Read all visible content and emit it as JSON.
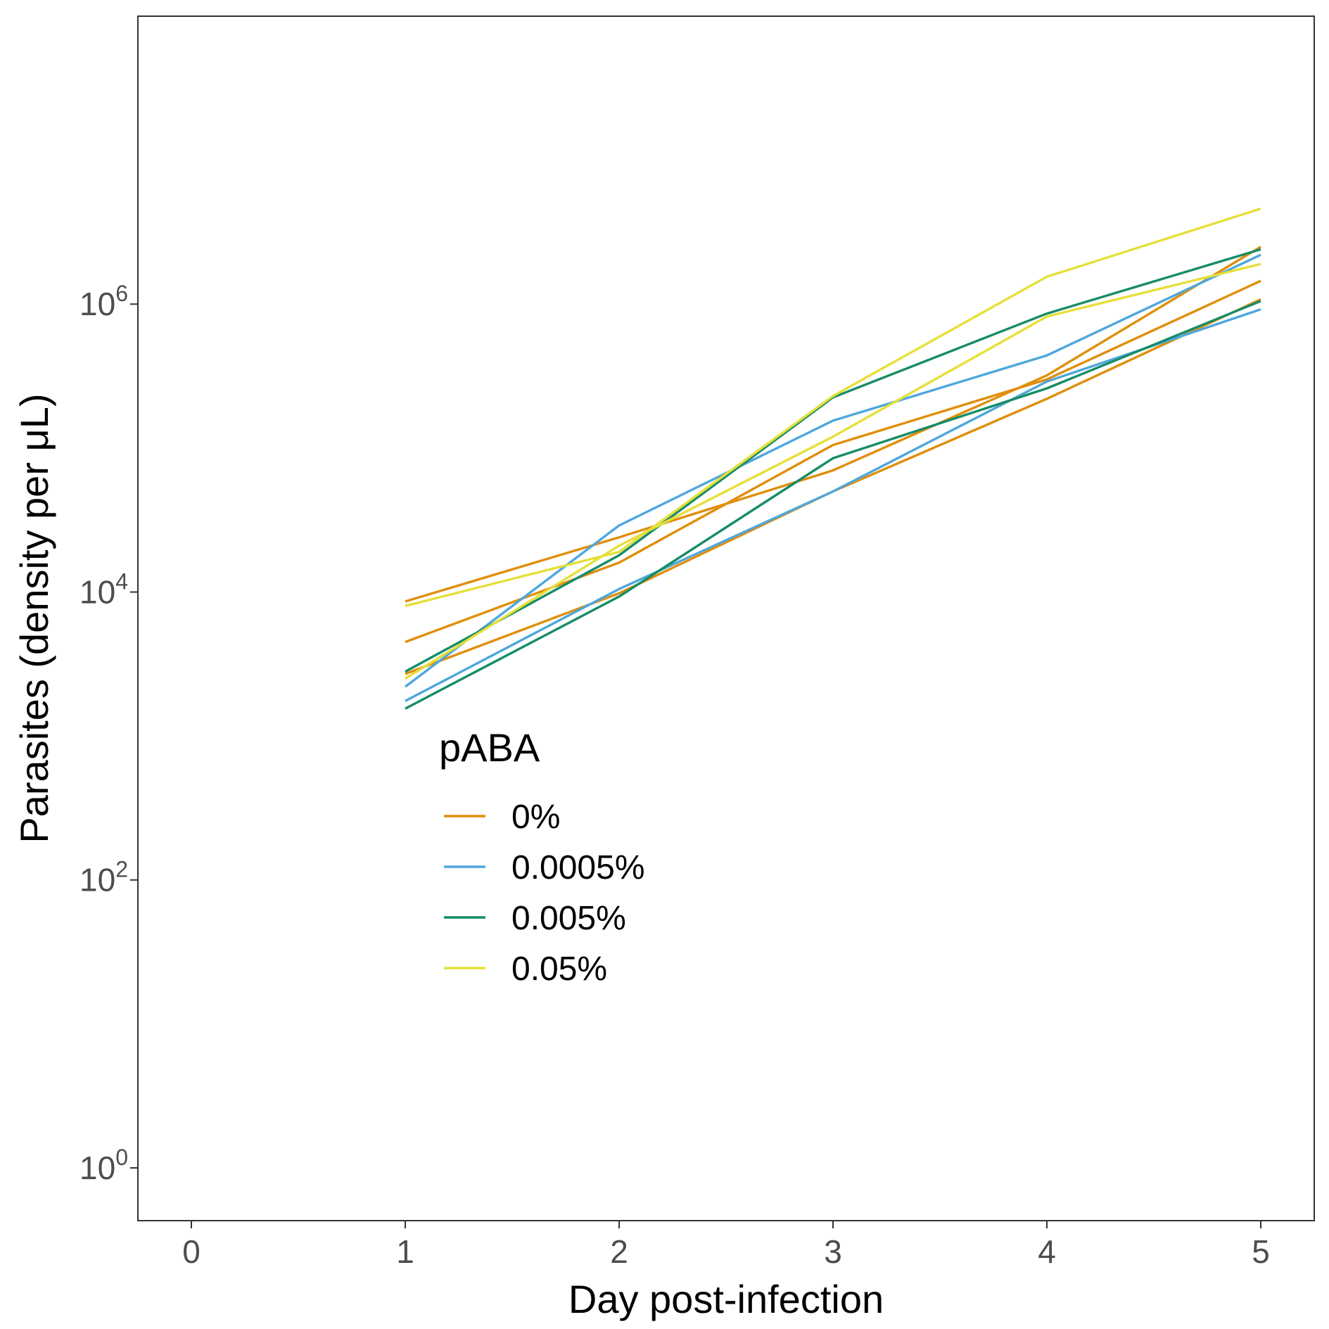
{
  "chart_data": {
    "type": "line",
    "title": "",
    "xlabel": "Day post-infection",
    "ylabel": "Parasites (density per μL)",
    "x_ticks": [
      0,
      1,
      2,
      3,
      4,
      5
    ],
    "xlim": [
      -0.25,
      5.25
    ],
    "y_scale": "log10",
    "y_ticks": [
      {
        "value": 1,
        "base": "10",
        "exp": "0"
      },
      {
        "value": 100,
        "base": "10",
        "exp": "2"
      },
      {
        "value": 10000,
        "base": "10",
        "exp": "4"
      },
      {
        "value": 1000000,
        "base": "10",
        "exp": "6"
      }
    ],
    "ylim": [
      0.43,
      100000000
    ],
    "grid": false,
    "legend": {
      "title": "pABA",
      "placement": "inside-lower-center-left",
      "entries": [
        {
          "label": "0%",
          "color": "#E08E0B"
        },
        {
          "label": "0.0005%",
          "color": "#4EA7DC"
        },
        {
          "label": "0.005%",
          "color": "#168C68"
        },
        {
          "label": "0.05%",
          "color": "#E6DF3A"
        }
      ]
    },
    "x": [
      1,
      2,
      3,
      4,
      5
    ],
    "series": [
      {
        "group": "0%",
        "color": "#E08E0B",
        "values": [
          8600,
          24000,
          70000,
          320000,
          2500000
        ]
      },
      {
        "group": "0%",
        "color": "#E08E0B",
        "values": [
          4500,
          16000,
          105000,
          300000,
          1450000
        ]
      },
      {
        "group": "0%",
        "color": "#E08E0B",
        "values": [
          2700,
          9800,
          50000,
          220000,
          1080000
        ]
      },
      {
        "group": "0.0005%",
        "color": "#4EA7DC",
        "values": [
          2200,
          29000,
          155000,
          440000,
          2200000
        ]
      },
      {
        "group": "0.0005%",
        "color": "#4EA7DC",
        "values": [
          1750,
          10500,
          50000,
          290000,
          920000
        ]
      },
      {
        "group": "0.005%",
        "color": "#168C68",
        "values": [
          2800,
          18000,
          225000,
          860000,
          2400000
        ]
      },
      {
        "group": "0.005%",
        "color": "#168C68",
        "values": [
          1550,
          9300,
          85000,
          260000,
          1050000
        ]
      },
      {
        "group": "0.05%",
        "color": "#E6DF3A",
        "values": [
          8000,
          19000,
          230000,
          1550000,
          4600000
        ]
      },
      {
        "group": "0.05%",
        "color": "#E6DF3A",
        "values": [
          2500,
          21000,
          120000,
          820000,
          1900000
        ]
      }
    ]
  }
}
